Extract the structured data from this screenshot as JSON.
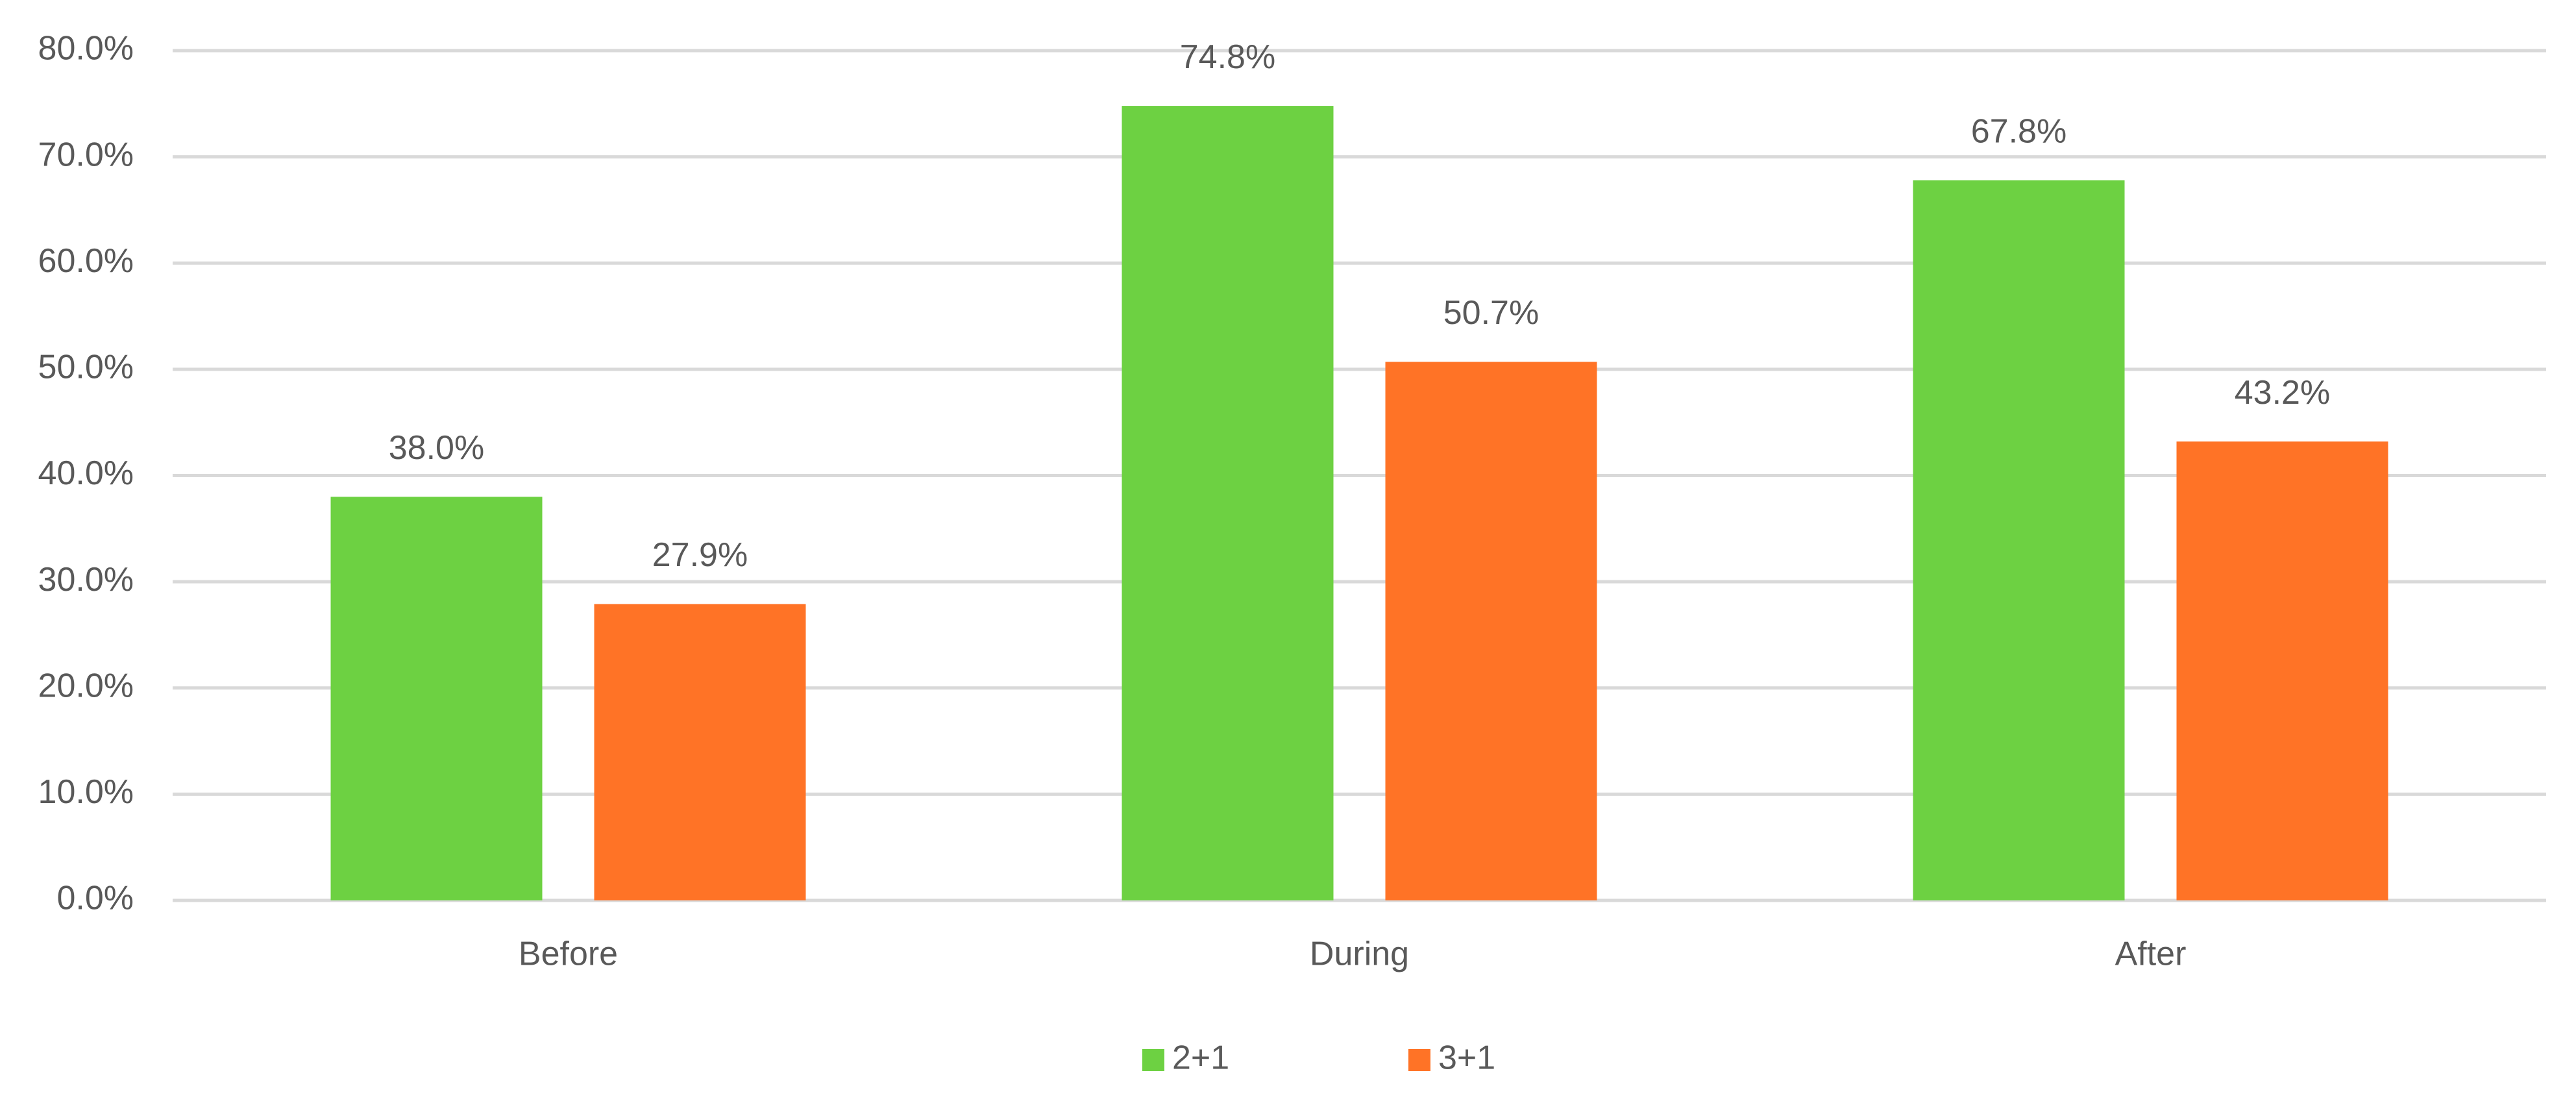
{
  "chart_data": {
    "type": "bar",
    "categories": [
      "Before",
      "During",
      "After"
    ],
    "series": [
      {
        "name": "2+1",
        "color": "#6dd142",
        "values": [
          38.0,
          74.8,
          67.8
        ],
        "value_labels": [
          "38.0%",
          "74.8%",
          "67.8%"
        ]
      },
      {
        "name": "3+1",
        "color": "#ff7326",
        "values": [
          27.9,
          50.7,
          43.2
        ],
        "value_labels": [
          "27.9%",
          "50.7%",
          "43.2%"
        ]
      }
    ],
    "ylim": [
      0,
      80
    ],
    "yticks": [
      {
        "value": 0,
        "label": "0.0%"
      },
      {
        "value": 10,
        "label": "10.0%"
      },
      {
        "value": 20,
        "label": "20.0%"
      },
      {
        "value": 30,
        "label": "30.0%"
      },
      {
        "value": 40,
        "label": "40.0%"
      },
      {
        "value": 50,
        "label": "50.0%"
      },
      {
        "value": 60,
        "label": "60.0%"
      },
      {
        "value": 70,
        "label": "70.0%"
      },
      {
        "value": 80,
        "label": "80.0%"
      }
    ],
    "grid": true,
    "legend": "bottom"
  }
}
